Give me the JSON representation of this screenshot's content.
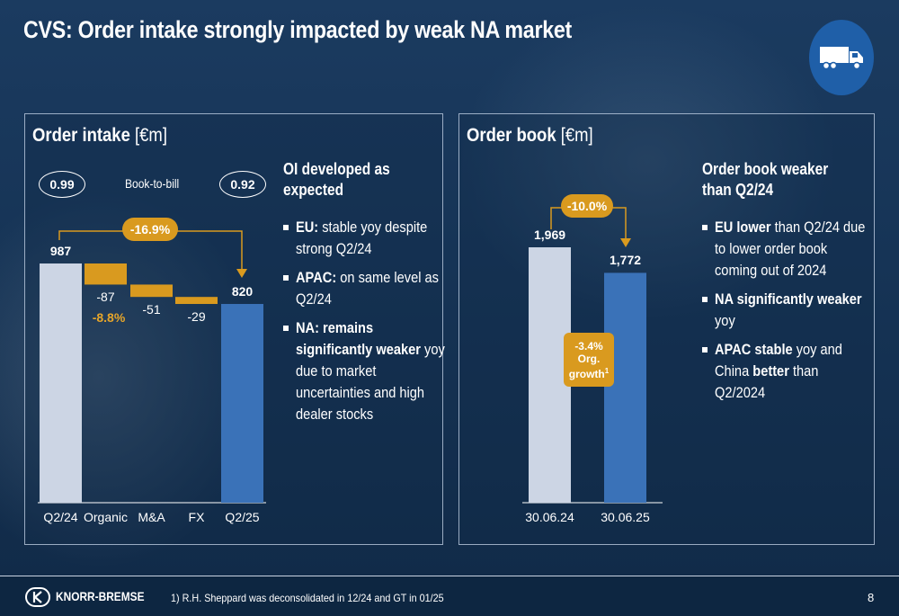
{
  "title": "CVS: Order intake strongly impacted by weak NA market",
  "badge_icon": "truck-icon",
  "colors": {
    "accent": "#d99a1f",
    "bar_light": "#ccd5e4",
    "bar_blue": "#3a72b8",
    "brand": "#1f5fa8"
  },
  "left_panel": {
    "title_bold": "Order intake",
    "title_unit": " [€m]",
    "btb_label": "Book-to-bill",
    "btb_start": "0.99",
    "btb_end": "0.92",
    "change_pill": "-16.9%",
    "organic_pct": "-8.8%",
    "bullets": {
      "head": "OI developed as expected",
      "items": [
        {
          "bold": "EU:",
          "text": " stable yoy despite strong Q2/24"
        },
        {
          "bold": "APAC:",
          "text": " on same level as Q2/24"
        },
        {
          "bold": "NA: remains significantly weaker",
          "text": " yoy due to market uncertainties and high dealer stocks"
        }
      ]
    }
  },
  "right_panel": {
    "title_bold": "Order book",
    "title_unit": " [€m]",
    "change_pill": "-10.0%",
    "org_growth_pct": "-3.4%",
    "org_growth_label": "Org.",
    "org_growth_label2": "growth",
    "org_growth_sup": "1",
    "bullets": {
      "head": "Order book weaker than Q2/24",
      "items": [
        {
          "bold": "EU lower",
          "text": " than Q2/24 due to lower order book coming out of 2024"
        },
        {
          "bold": "NA significantly weaker",
          "text": " yoy"
        },
        {
          "bold": "APAC stable",
          "text": " yoy and China ",
          "bold2": "better",
          "text2": " than Q2/2024"
        }
      ]
    }
  },
  "chart_data": [
    {
      "type": "bar",
      "subtype": "waterfall",
      "title": "Order intake [€m]",
      "categories": [
        "Q2/24",
        "Organic",
        "M&A",
        "FX",
        "Q2/25"
      ],
      "values": [
        987,
        -87,
        -51,
        -29,
        820
      ],
      "labels": [
        "987",
        "-87",
        "-51",
        "-29",
        "820"
      ]
    },
    {
      "type": "bar",
      "title": "Order book [€m]",
      "categories": [
        "30.06.24",
        "30.06.25"
      ],
      "values": [
        1969,
        1772
      ],
      "labels": [
        "1,969",
        "1,772"
      ]
    }
  ],
  "footer": {
    "brand": "KNORR-BREMSE",
    "footnote": "1) R.H. Sheppard was deconsolidated in 12/24 and GT in 01/25",
    "page": "8"
  }
}
